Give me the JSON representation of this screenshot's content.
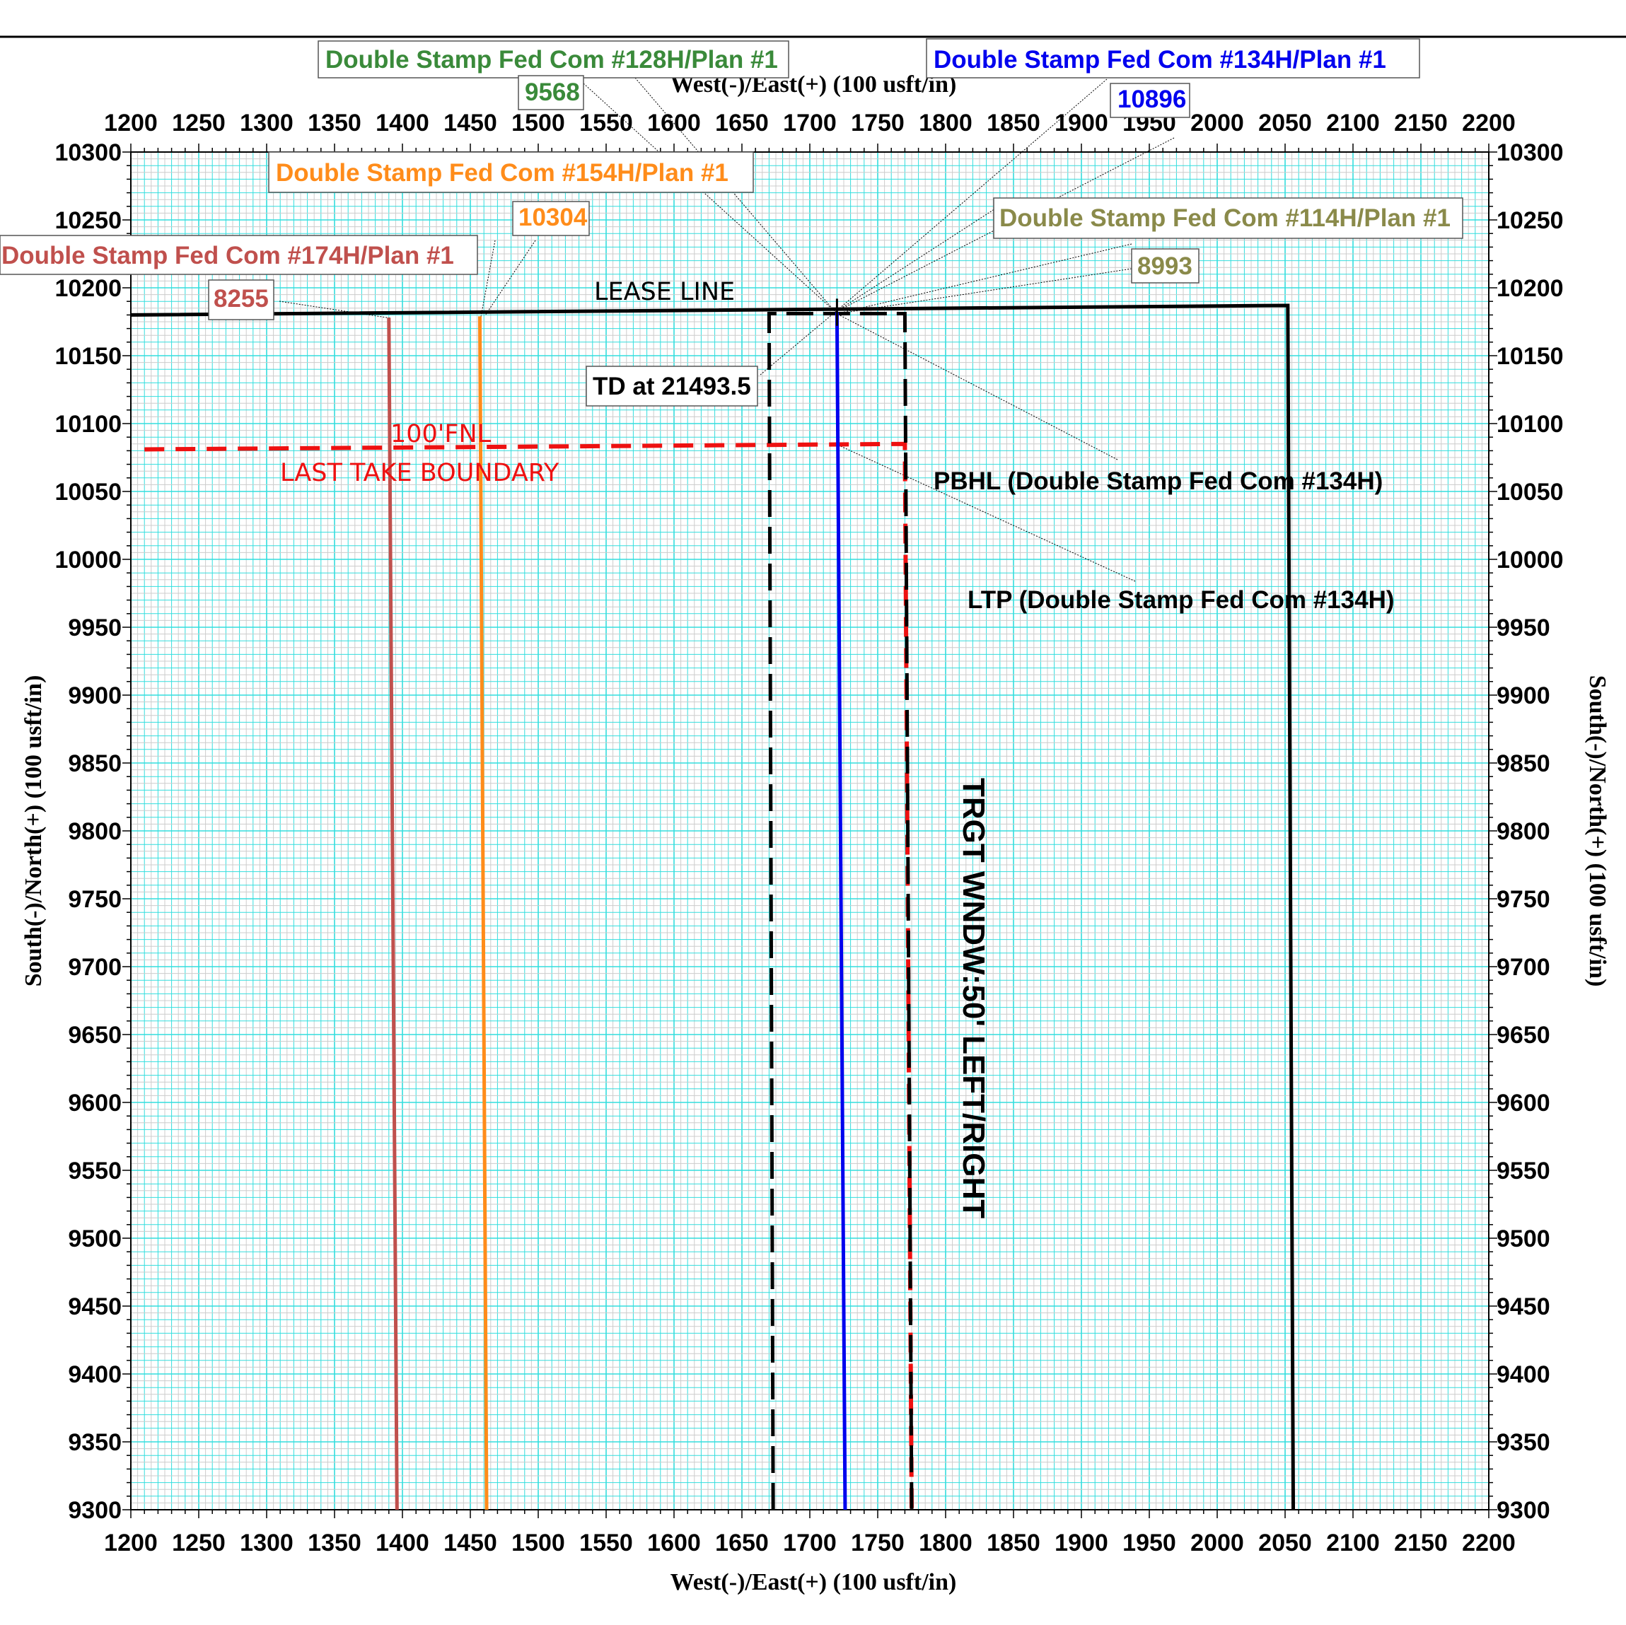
{
  "chart_data": {
    "type": "line",
    "xlabel": "West(-)/East(+) (100 usft/in)",
    "ylabel": "South(-)/North(+) (100 usft/in)",
    "xlim": [
      1200,
      2200
    ],
    "ylim": [
      9300,
      10300
    ],
    "x_ticks": [
      1200,
      1250,
      1300,
      1350,
      1400,
      1450,
      1500,
      1550,
      1600,
      1650,
      1700,
      1750,
      1800,
      1850,
      1900,
      1950,
      2000,
      2050,
      2100,
      2150,
      2200
    ],
    "y_ticks": [
      10300,
      10250,
      10200,
      10150,
      10100,
      10050,
      10000,
      9950,
      9900,
      9850,
      9800,
      9750,
      9700,
      9650,
      9600,
      9550,
      9500,
      9450,
      9400,
      9350,
      9300
    ],
    "grid": true,
    "series": [
      {
        "name": "Double Stamp Fed Com #174H/Plan #1",
        "color": "#c0504d",
        "points": [
          [
            1390,
            10178
          ],
          [
            1396,
            9300
          ]
        ],
        "md_label": "8255"
      },
      {
        "name": "Double Stamp Fed Com #154H/Plan #1",
        "color": "#ff8c1a",
        "points": [
          [
            1457,
            10179
          ],
          [
            1462,
            9300
          ]
        ],
        "md_label": "10304"
      },
      {
        "name": "Double Stamp Fed Com #134H/Plan #1",
        "color": "#0000ee",
        "points": [
          [
            1720,
            10182
          ],
          [
            1726,
            9300
          ]
        ],
        "md_label": "10896"
      },
      {
        "name": "Double Stamp Fed Com #128H/Plan #1",
        "color": "#3a8a3a",
        "points": [],
        "md_label": "9568"
      },
      {
        "name": "Double Stamp Fed Com #114H/Plan #1",
        "color": "#8a8a4a",
        "points": [],
        "md_label": "8993"
      }
    ],
    "boundaries": [
      {
        "name": "lease_line",
        "label": "LEASE LINE",
        "color": "#000000",
        "points": [
          [
            1200,
            10180
          ],
          [
            2052,
            10187
          ],
          [
            2056,
            9300
          ]
        ]
      },
      {
        "name": "last_take",
        "label_line1": "100'FNL",
        "label_line2": "LAST TAKE BOUNDARY",
        "color": "#ee1111",
        "points": [
          [
            1210,
            10081
          ],
          [
            1770,
            10085
          ],
          [
            1775,
            9300
          ]
        ]
      },
      {
        "name": "target_window",
        "label": "TRGT WNDW:50' LEFT/RIGHT",
        "color": "#000000",
        "points": [
          [
            1673,
            9300
          ],
          [
            1670,
            10181
          ],
          [
            1770,
            10181
          ],
          [
            1775,
            9300
          ]
        ]
      }
    ],
    "annotations": {
      "td": "TD at 21493.5",
      "pbhl": "PBHL (Double Stamp Fed Com #134H)",
      "ltp": "LTP (Double Stamp Fed Com #134H)"
    },
    "label_colors": {
      "s128": "#3a8a3a",
      "s134": "#0000ee",
      "s154": "#ff8c1a",
      "s174": "#c0504d",
      "s114": "#8a8a4a"
    }
  }
}
